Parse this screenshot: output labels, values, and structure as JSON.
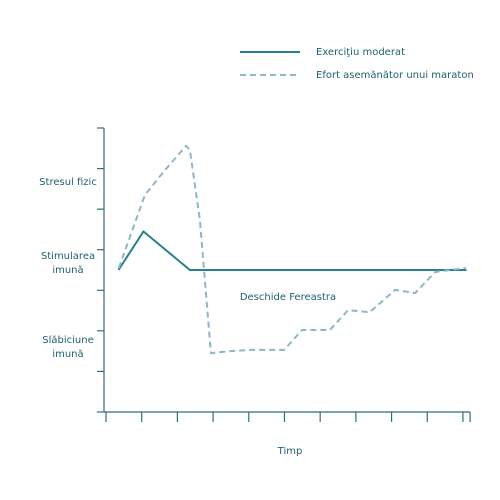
{
  "chart_data": {
    "type": "line",
    "series": [
      {
        "name": "Exerciţiu moderat",
        "color": "#2a7f8f",
        "dash": false,
        "x": [
          0.35,
          1.05,
          2.35,
          10.1
        ],
        "values": [
          3.5,
          4.45,
          3.5,
          3.5
        ]
      },
      {
        "name": "Efort asemănător unui maraton",
        "color": "#8bb8c6",
        "dash": true,
        "x": [
          0.36,
          1.09,
          1.65,
          2.24,
          2.35,
          2.63,
          2.94,
          3.47,
          4.03,
          4.99,
          5.49,
          6.27,
          6.78,
          7.39,
          8.1,
          8.66,
          9.22,
          10.08
        ],
        "values": [
          3.55,
          5.35,
          5.96,
          6.56,
          6.46,
          4.73,
          1.45,
          1.5,
          1.53,
          1.53,
          2.02,
          2.02,
          2.51,
          2.46,
          3.01,
          2.93,
          3.45,
          3.55
        ]
      }
    ],
    "y_category_labels": [
      "Stresul fizic",
      "Stimularea imună",
      "Slăbiciune imună"
    ],
    "annotation": "Deschide Fereastra",
    "xlabel": "Timp",
    "xlim": [
      0,
      10.2
    ],
    "xticks": [
      0,
      1,
      2,
      3,
      4,
      5,
      6,
      7,
      8,
      9,
      10
    ],
    "ylim": [
      0,
      7
    ],
    "yticks": [
      0,
      1,
      2,
      3,
      4,
      5,
      6,
      7
    ],
    "axis_color": "#2f6e80"
  }
}
